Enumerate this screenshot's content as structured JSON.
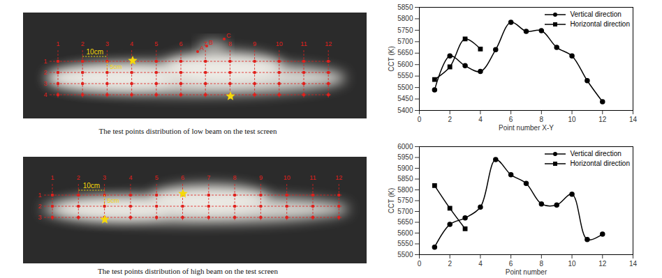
{
  "chart_data": [
    {
      "type": "line",
      "x_label": "Point number X-Y",
      "y_label": "CCT (K)",
      "xlim": [
        0,
        14
      ],
      "xticks": [
        0,
        2,
        4,
        6,
        8,
        10,
        12,
        14
      ],
      "ylim": [
        5400,
        5850
      ],
      "yticks": [
        5400,
        5450,
        5500,
        5550,
        5600,
        5650,
        5700,
        5750,
        5800,
        5850
      ],
      "grid": false,
      "legend": "top-right",
      "series": [
        {
          "name": "Vertical direction",
          "color": "#000000",
          "marker": "circle",
          "line_style": "smooth",
          "x": [
            1,
            2,
            3,
            4,
            5,
            6,
            7,
            8,
            9,
            10,
            11,
            12
          ],
          "values": [
            5490,
            5638,
            5595,
            5570,
            5665,
            5785,
            5745,
            5748,
            5675,
            5638,
            5530,
            5438
          ]
        },
        {
          "name": "Horizontal direction",
          "color": "#000000",
          "marker": "square",
          "line_style": "smooth",
          "x": [
            1,
            2,
            3,
            4
          ],
          "values": [
            5535,
            5590,
            5712,
            5668
          ]
        }
      ]
    },
    {
      "type": "line",
      "x_label": "Point number",
      "y_label": "CCT (K)",
      "xlim": [
        0,
        14
      ],
      "xticks": [
        0,
        2,
        4,
        6,
        8,
        10,
        12,
        14
      ],
      "ylim": [
        5500,
        6000
      ],
      "yticks": [
        5500,
        5550,
        5600,
        5650,
        5700,
        5750,
        5800,
        5850,
        5900,
        5950,
        6000
      ],
      "grid": false,
      "legend": "top-right",
      "series": [
        {
          "name": "Vertical direction",
          "color": "#000000",
          "marker": "circle",
          "line_style": "smooth",
          "x": [
            1,
            2,
            3,
            4,
            5,
            6,
            7,
            8,
            9,
            10,
            11,
            12
          ],
          "values": [
            5535,
            5640,
            5670,
            5720,
            5940,
            5870,
            5830,
            5735,
            5730,
            5780,
            5570,
            5595
          ]
        },
        {
          "name": "Horizontal direction",
          "color": "#000000",
          "marker": "square",
          "line_style": "smooth",
          "x": [
            1,
            2,
            3
          ],
          "values": [
            5820,
            5715,
            5620
          ]
        }
      ]
    }
  ],
  "figures": [
    {
      "caption": "The test points distribution of low beam on the test screen",
      "columns": [
        "1",
        "2",
        "3",
        "4",
        "5",
        "6",
        "7",
        "8",
        "9",
        "10",
        "11",
        "12"
      ],
      "rows": [
        "1",
        "2",
        "3",
        "4"
      ],
      "spacing_labels": [
        "10cm",
        "5cm"
      ],
      "points": [
        "A",
        "B",
        "C"
      ]
    },
    {
      "caption": "The test points distribution of high beam on the test screen",
      "columns": [
        "1",
        "2",
        "3",
        "4",
        "5",
        "6",
        "7",
        "8",
        "9",
        "10",
        "11",
        "12"
      ],
      "rows": [
        "1",
        "2",
        "3"
      ],
      "spacing_labels": [
        "10cm",
        "5cm"
      ]
    }
  ]
}
